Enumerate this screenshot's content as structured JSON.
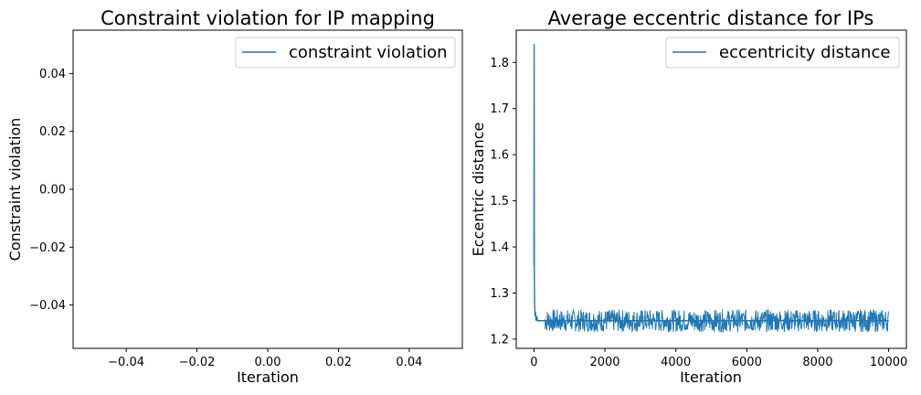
{
  "colors": {
    "series": "#1f77b4",
    "axes": "#000000",
    "legend_border": "#cccccc"
  },
  "chart_data": [
    {
      "type": "line",
      "title": "Constraint violation for IP mapping",
      "xlabel": "Iteration",
      "ylabel": "Constraint violation",
      "xlim": [
        -0.055,
        0.055
      ],
      "ylim": [
        -0.055,
        0.055
      ],
      "xticks": [
        -0.04,
        -0.02,
        0.0,
        0.02,
        0.04
      ],
      "xtick_labels": [
        "−0.04",
        "−0.02",
        "0.00",
        "0.02",
        "0.04"
      ],
      "yticks": [
        -0.04,
        -0.02,
        0.0,
        0.02,
        0.04
      ],
      "ytick_labels": [
        "−0.04",
        "−0.02",
        "0.00",
        "0.02",
        "0.04"
      ],
      "grid": false,
      "legend_position": "top-right",
      "series": [
        {
          "name": "constraint violation",
          "x": [],
          "y": []
        }
      ]
    },
    {
      "type": "line",
      "title": "Average eccentric distance for IPs",
      "xlabel": "Iteration",
      "ylabel": "Eccentric distance",
      "xlim": [
        -500,
        10500
      ],
      "ylim": [
        1.18,
        1.87
      ],
      "xticks": [
        0,
        2000,
        4000,
        6000,
        8000,
        10000
      ],
      "xtick_labels": [
        "0",
        "2000",
        "4000",
        "6000",
        "8000",
        "10000"
      ],
      "yticks": [
        1.2,
        1.3,
        1.4,
        1.5,
        1.6,
        1.7,
        1.8
      ],
      "ytick_labels": [
        "1.2",
        "1.3",
        "1.4",
        "1.5",
        "1.6",
        "1.7",
        "1.8"
      ],
      "grid": false,
      "legend_position": "top-right",
      "series": [
        {
          "name": "eccentricity distance",
          "x": [
            0,
            5,
            10,
            15,
            20,
            30,
            40,
            60,
            80,
            100,
            150,
            200,
            300,
            500,
            1000,
            1500,
            2000,
            2500,
            3000,
            3500,
            4000,
            4500,
            5000,
            5500,
            6000,
            6500,
            7000,
            7500,
            8000,
            8500,
            9000,
            9500,
            10000
          ],
          "y": [
            1.36,
            1.84,
            1.36,
            1.3,
            1.27,
            1.25,
            1.26,
            1.24,
            1.25,
            1.24,
            1.24,
            1.24,
            1.24,
            1.24,
            1.24,
            1.24,
            1.24,
            1.24,
            1.24,
            1.24,
            1.24,
            1.24,
            1.24,
            1.24,
            1.24,
            1.24,
            1.24,
            1.24,
            1.24,
            1.24,
            1.24,
            1.24,
            1.24
          ],
          "band_min": 1.205,
          "band_max": 1.275
        }
      ]
    }
  ]
}
